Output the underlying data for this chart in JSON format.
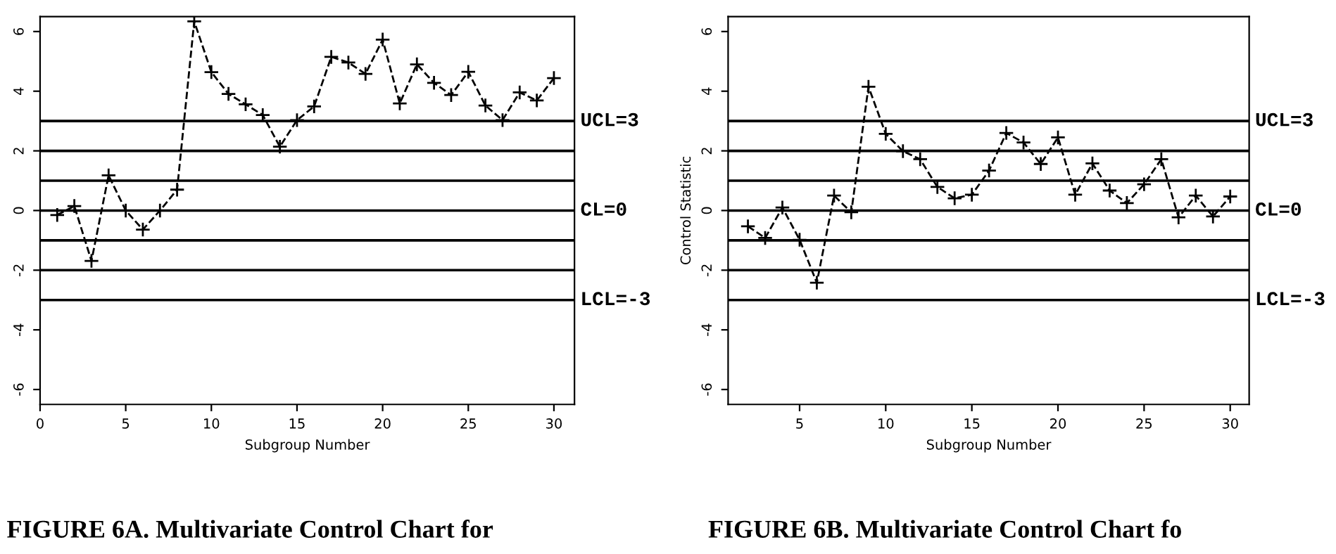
{
  "chart_data": [
    {
      "type": "line",
      "xlabel": "Subgroup Number",
      "x": [
        1,
        2,
        3,
        4,
        5,
        6,
        7,
        8,
        9,
        10,
        11,
        12,
        13,
        14,
        15,
        16,
        17,
        18,
        19,
        20,
        21,
        22,
        23,
        24,
        25,
        26,
        27,
        28,
        29,
        30
      ],
      "series": [
        {
          "color": "#000000",
          "values": [
            -0.15,
            0.15,
            -1.69,
            1.18,
            0,
            -0.64,
            0,
            0.7,
            6.34,
            4.64,
            3.91,
            3.56,
            3.2,
            2.14,
            3.03,
            3.49,
            5.15,
            4.96,
            4.58,
            5.73,
            3.59,
            4.9,
            4.28,
            3.87,
            4.65,
            3.52,
            3.03,
            3.96,
            3.69,
            4.44
          ]
        }
      ],
      "xlim": [
        0,
        31.2
      ],
      "xticks": [
        0,
        5,
        10,
        15,
        20,
        25,
        30
      ],
      "ylim": [
        -6.5,
        6.5
      ],
      "yticks": [
        -6,
        -4,
        -2,
        0,
        2,
        4,
        6
      ],
      "marker": "cross",
      "line_style": "dashed",
      "grid": false,
      "ref_lines": [
        {
          "axis": "y",
          "value": 3,
          "label": "UCL=3"
        },
        {
          "axis": "y",
          "value": 2
        },
        {
          "axis": "y",
          "value": 1
        },
        {
          "axis": "y",
          "value": 0,
          "label": "CL=0"
        },
        {
          "axis": "y",
          "value": -1
        },
        {
          "axis": "y",
          "value": -2
        },
        {
          "axis": "y",
          "value": -3,
          "label": "LCL=-3"
        }
      ],
      "annotations": [
        "FIGURE 6A. Multivariate Control Chart for"
      ]
    },
    {
      "type": "line",
      "xlabel": "Subgroup Number",
      "ylabel": "Control Statistic",
      "x": [
        2,
        3,
        4,
        5,
        6,
        7,
        8,
        9,
        10,
        11,
        12,
        13,
        14,
        15,
        16,
        17,
        18,
        19,
        20,
        21,
        22,
        23,
        24,
        25,
        26,
        27,
        28,
        29,
        30
      ],
      "series": [
        {
          "color": "#000000",
          "values": [
            -0.53,
            -0.92,
            0.1,
            -0.98,
            -2.42,
            0.5,
            -0.06,
            4.15,
            2.57,
            1.99,
            1.72,
            0.79,
            0.41,
            0.53,
            1.34,
            2.6,
            2.28,
            1.56,
            2.45,
            0.53,
            1.58,
            0.67,
            0.25,
            0.88,
            1.72,
            -0.23,
            0.5,
            -0.2,
            0.47
          ]
        }
      ],
      "xlim": [
        0.85,
        31.1
      ],
      "xticks": [
        5,
        10,
        15,
        20,
        25,
        30
      ],
      "ylim": [
        -6.5,
        6.5
      ],
      "yticks": [
        -6,
        -4,
        -2,
        0,
        2,
        4,
        6
      ],
      "marker": "cross",
      "line_style": "dashed",
      "grid": false,
      "ref_lines": [
        {
          "axis": "y",
          "value": 3,
          "label": "UCL=3"
        },
        {
          "axis": "y",
          "value": 2
        },
        {
          "axis": "y",
          "value": 1
        },
        {
          "axis": "y",
          "value": 0,
          "label": "CL=0"
        },
        {
          "axis": "y",
          "value": -1
        },
        {
          "axis": "y",
          "value": -2
        },
        {
          "axis": "y",
          "value": -3,
          "label": "LCL=-3"
        }
      ],
      "annotations": [
        "FIGURE 6B. Multivariate Control Chart fo"
      ]
    }
  ]
}
